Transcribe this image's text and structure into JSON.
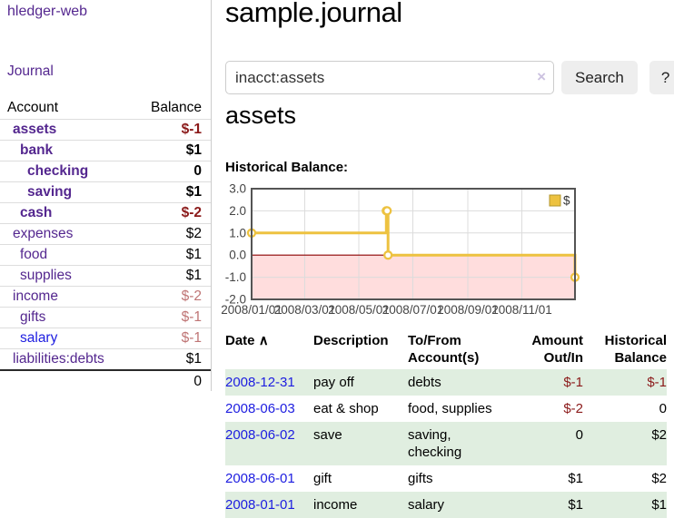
{
  "sidebar": {
    "app_title": "hledger-web",
    "nav": {
      "journal_label": "Journal"
    },
    "accounts_table": {
      "headers": {
        "account": "Account",
        "balance": "Balance"
      },
      "rows": [
        {
          "name": "assets",
          "indent": 1,
          "in_account": true,
          "link_color": "purple",
          "balance": "$-1"
        },
        {
          "name": "bank",
          "indent": 2,
          "in_account": true,
          "link_color": "purple",
          "balance": "$1"
        },
        {
          "name": "checking",
          "indent": 3,
          "in_account": true,
          "link_color": "purple",
          "balance": "0"
        },
        {
          "name": "saving",
          "indent": 3,
          "in_account": true,
          "link_color": "purple",
          "balance": "$1"
        },
        {
          "name": "cash",
          "indent": 2,
          "in_account": true,
          "link_color": "purple",
          "balance": "$-2"
        },
        {
          "name": "expenses",
          "indent": 1,
          "in_account": false,
          "link_color": "purple",
          "balance": "$2"
        },
        {
          "name": "food",
          "indent": 2,
          "in_account": false,
          "link_color": "purple",
          "balance": "$1"
        },
        {
          "name": "supplies",
          "indent": 2,
          "in_account": false,
          "link_color": "purple",
          "balance": "$1"
        },
        {
          "name": "income",
          "indent": 1,
          "in_account": false,
          "link_color": "purple",
          "balance": "$-2"
        },
        {
          "name": "gifts",
          "indent": 2,
          "in_account": false,
          "link_color": "purple",
          "balance": "$-1"
        },
        {
          "name": "salary",
          "indent": 2,
          "in_account": false,
          "link_color": "blue",
          "balance": "$-1"
        },
        {
          "name": "liabilities:debts",
          "indent": 1,
          "in_account": false,
          "link_color": "purple",
          "balance": "$1"
        }
      ],
      "total": "0"
    }
  },
  "header": {
    "title": "sample.journal"
  },
  "search": {
    "query": "inacct:assets",
    "clear_icon": "×",
    "search_label": "Search",
    "help_label": "?"
  },
  "main": {
    "account_title": "assets",
    "chart_label": "Historical Balance:"
  },
  "chart_data": {
    "type": "line",
    "title": "Historical Balance",
    "steps": true,
    "series": [
      {
        "name": "$",
        "color": "#edc240",
        "points": [
          [
            "2008-01-01",
            1
          ],
          [
            "2008-06-01",
            2
          ],
          [
            "2008-06-02",
            2
          ],
          [
            "2008-06-03",
            0
          ],
          [
            "2008-12-31",
            -1
          ]
        ]
      }
    ],
    "x_range": [
      "2008-01-01",
      "2008-12-31"
    ],
    "ylim": [
      -2,
      3
    ],
    "y_ticks": [
      "3.0",
      "2.0",
      "1.0",
      "0.0",
      "-1.0",
      "-2.0"
    ],
    "x_ticks": [
      {
        "date": "2008-01-01",
        "label": "2008/01/01",
        "grid": false
      },
      {
        "date": "2008-03-01",
        "label": "2008/03/01",
        "grid": true
      },
      {
        "date": "2008-05-01",
        "label": "2008/05/01",
        "grid": true
      },
      {
        "date": "2008-07-01",
        "label": "2008/07/01",
        "grid": true
      },
      {
        "date": "2008-09-01",
        "label": "2008/09/01",
        "grid": true
      },
      {
        "date": "2008-11-01",
        "label": "2008/11/01",
        "grid": true
      }
    ],
    "legend": "$",
    "legend_position": "top-right",
    "grid": true,
    "negative_region_color": "#ffdddd",
    "zero_line_color": "#8b0000"
  },
  "register": {
    "headers": {
      "date": "Date",
      "description": "Description",
      "accounts": "To/From\nAccount(s)",
      "amount": "Amount\nOut/In",
      "balance": "Historical\nBalance"
    },
    "sort_icon": "∧",
    "rows": [
      {
        "date": "2008-12-31",
        "description": "pay off",
        "accounts": "debts",
        "amount": "$-1",
        "balance": "$-1"
      },
      {
        "date": "2008-06-03",
        "description": "eat & shop",
        "accounts": "food, supplies",
        "amount": "$-2",
        "balance": "0"
      },
      {
        "date": "2008-06-02",
        "description": "save",
        "accounts": "saving, checking",
        "amount": "0",
        "balance": "$2"
      },
      {
        "date": "2008-06-01",
        "description": "gift",
        "accounts": "gifts",
        "amount": "$1",
        "balance": "$2"
      },
      {
        "date": "2008-01-01",
        "description": "income",
        "accounts": "salary",
        "amount": "$1",
        "balance": "$1"
      }
    ]
  },
  "colors": {
    "link-purple": "#54278f",
    "link-blue": "#1d1de0",
    "neg-strong": "#8b1a1a",
    "neg-soft": "#bf7575",
    "row-green": "#e0eee0",
    "button-bg": "#eeeeee",
    "chart-line": "#edc240",
    "chart-neg-region": "#ffdddd",
    "chart-zero-line": "#8b0000"
  }
}
